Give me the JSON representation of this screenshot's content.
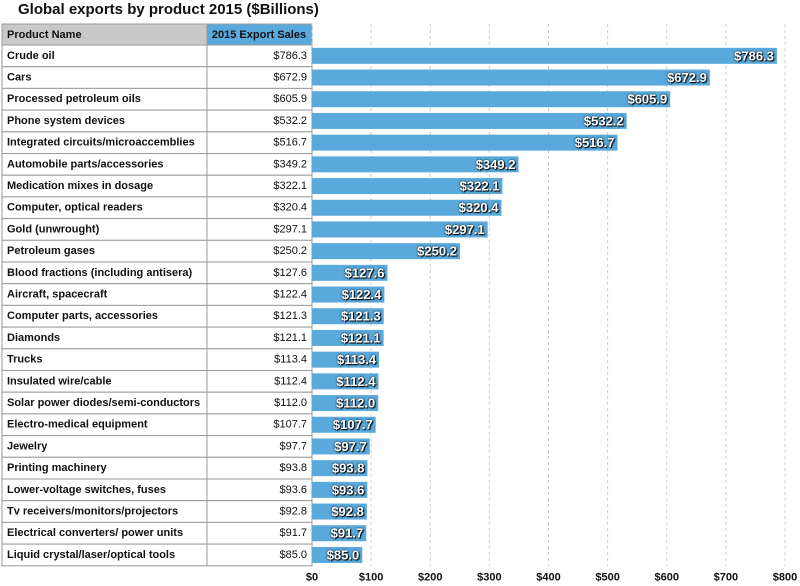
{
  "chart_data": {
    "type": "bar",
    "title": "Global exports by product 2015 ($Billions)",
    "table_headers": [
      "Product Name",
      "2015 Export Sales"
    ],
    "categories": [
      "Crude oil",
      "Cars",
      "Processed petroleum oils",
      "Phone system devices",
      "Integrated circuits/microaccemblies",
      "Automobile parts/accessories",
      "Medication mixes in dosage",
      "Computer, optical readers",
      "Gold (unwrought)",
      "Petroleum gases",
      "Blood fractions (including antisera)",
      "Aircraft, spacecraft",
      "Computer parts, accessories",
      "Diamonds",
      "Trucks",
      "Insulated wire/cable",
      "Solar power diodes/semi-conductors",
      "Electro-medical equipment",
      "Jewelry",
      "Printing machinery",
      "Lower-voltage switches, fuses",
      "Tv receivers/monitors/projectors",
      "Electrical converters/ power units",
      "Liquid crystal/laser/optical tools"
    ],
    "values": [
      786.3,
      672.9,
      605.9,
      532.2,
      516.7,
      349.2,
      322.1,
      320.4,
      297.1,
      250.2,
      127.6,
      122.4,
      121.3,
      121.1,
      113.4,
      112.4,
      112.0,
      107.7,
      97.7,
      93.8,
      93.6,
      92.8,
      91.7,
      85.0
    ],
    "value_labels": [
      "$786.3",
      "$672.9",
      "$605.9",
      "$532.2",
      "$516.7",
      "$349.2",
      "$322.1",
      "$320.4",
      "$297.1",
      "$250.2",
      "$127.6",
      "$122.4",
      "$121.3",
      "$121.1",
      "$113.4",
      "$112.4",
      "$112.0",
      "$107.7",
      "$97.7",
      "$93.8",
      "$93.6",
      "$92.8",
      "$91.7",
      "$85.0"
    ],
    "color": "#5aa9dc",
    "xlim": [
      0,
      800
    ],
    "xticks": [
      {
        "value": 0,
        "label": "$0"
      },
      {
        "value": 100,
        "label": "$100"
      },
      {
        "value": 200,
        "label": "$200"
      },
      {
        "value": 300,
        "label": "$300"
      },
      {
        "value": 400,
        "label": "$400"
      },
      {
        "value": 500,
        "label": "$500"
      },
      {
        "value": 600,
        "label": "$600"
      },
      {
        "value": 700,
        "label": "$700"
      },
      {
        "value": 800,
        "label": "$800"
      }
    ],
    "grid": true
  }
}
